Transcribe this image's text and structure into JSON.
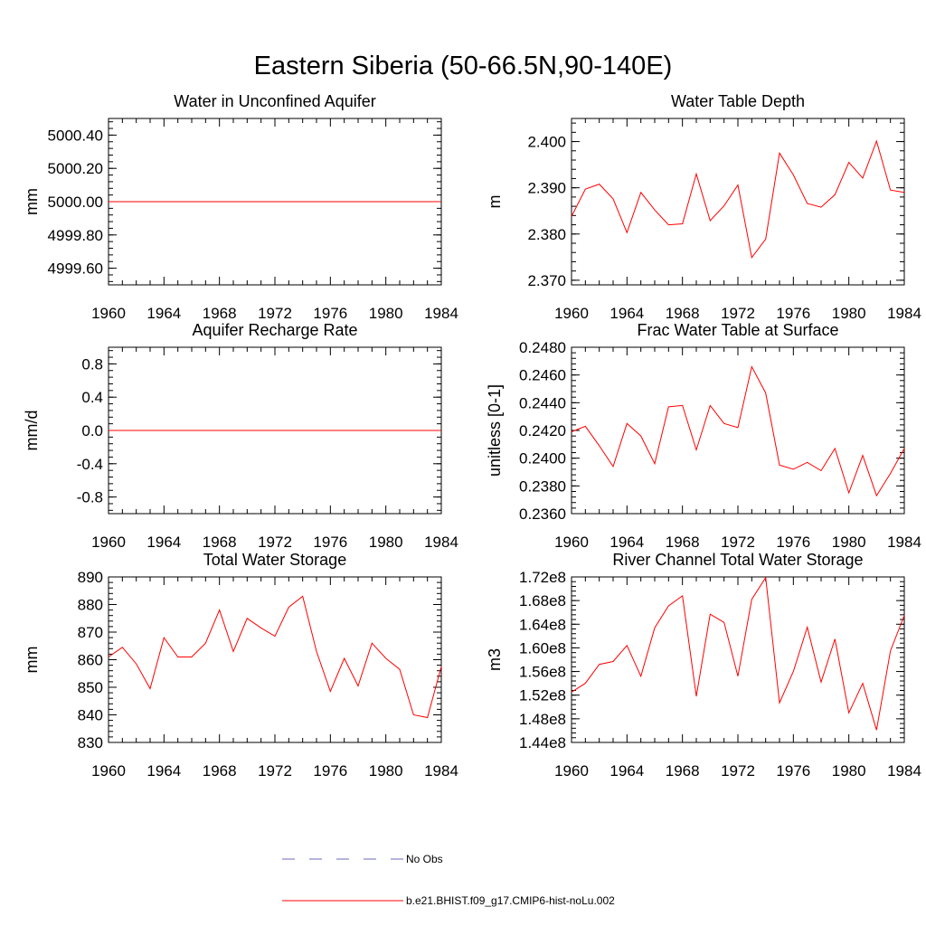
{
  "figure": {
    "title": "Eastern Siberia (50-66.5N,90-140E)",
    "line_color": "#ff0000",
    "obs_color": "#6a6ab8"
  },
  "legend": {
    "entries": [
      {
        "label": "No Obs",
        "style": "dashed",
        "color": "#6a6ab8"
      },
      {
        "label": "b.e21.BHIST.f09_g17.CMIP6-hist-noLu.002",
        "style": "solid",
        "color": "#ff0000"
      }
    ]
  },
  "chart_data": [
    {
      "type": "line",
      "title": "Water in Unconfined Aquifer",
      "ylabel": "mm",
      "x": [
        1960,
        1984
      ],
      "values": [
        5000.0,
        5000.0
      ],
      "xlim": [
        1960,
        1984
      ],
      "xticks": [
        "1960",
        "1964",
        "1968",
        "1972",
        "1976",
        "1980",
        "1984"
      ],
      "ylim": [
        4999.5,
        5000.5
      ],
      "yticks": [
        {
          "v": 4999.6,
          "label": "4999.60"
        },
        {
          "v": 4999.8,
          "label": "4999.80"
        },
        {
          "v": 5000.0,
          "label": "5000.00"
        },
        {
          "v": 5000.2,
          "label": "5000.20"
        },
        {
          "v": 5000.4,
          "label": "5000.40"
        }
      ],
      "grid": false
    },
    {
      "type": "line",
      "title": "Water Table Depth",
      "ylabel": "m",
      "x": [
        1960,
        1961,
        1962,
        1963,
        1964,
        1965,
        1966,
        1967,
        1968,
        1969,
        1970,
        1971,
        1972,
        1973,
        1974,
        1975,
        1976,
        1977,
        1978,
        1979,
        1980,
        1981,
        1982,
        1983,
        1984
      ],
      "values": [
        2.3838,
        2.3897,
        2.3908,
        2.3876,
        2.3803,
        2.389,
        2.3852,
        2.382,
        2.3822,
        2.393,
        2.3829,
        2.3861,
        2.3906,
        2.3749,
        2.3789,
        2.3975,
        2.3928,
        2.3866,
        2.3858,
        2.3885,
        2.3955,
        2.3921,
        2.4001,
        2.3895,
        2.389
      ],
      "xlim": [
        1960,
        1984
      ],
      "xticks": [
        "1960",
        "1964",
        "1968",
        "1972",
        "1976",
        "1980",
        "1984"
      ],
      "ylim": [
        2.369,
        2.405
      ],
      "yticks": [
        {
          "v": 2.37,
          "label": "2.370"
        },
        {
          "v": 2.38,
          "label": "2.380"
        },
        {
          "v": 2.39,
          "label": "2.390"
        },
        {
          "v": 2.4,
          "label": "2.400"
        }
      ],
      "grid": false
    },
    {
      "type": "line",
      "title": "Aquifer Recharge Rate",
      "ylabel": "mm/d",
      "x": [
        1960,
        1984
      ],
      "values": [
        0.0,
        0.0
      ],
      "xlim": [
        1960,
        1984
      ],
      "xticks": [
        "1960",
        "1964",
        "1968",
        "1972",
        "1976",
        "1980",
        "1984"
      ],
      "ylim": [
        -1.0,
        1.0
      ],
      "yticks": [
        {
          "v": -0.8,
          "label": "-0.8"
        },
        {
          "v": -0.4,
          "label": "-0.4"
        },
        {
          "v": 0.0,
          "label": "0.0"
        },
        {
          "v": 0.4,
          "label": "0.4"
        },
        {
          "v": 0.8,
          "label": "0.8"
        }
      ],
      "grid": false
    },
    {
      "type": "line",
      "title": "Frac Water Table at Surface",
      "ylabel": "unitless [0-1]",
      "x": [
        1960,
        1961,
        1962,
        1963,
        1964,
        1965,
        1966,
        1967,
        1968,
        1969,
        1970,
        1971,
        1972,
        1973,
        1974,
        1975,
        1976,
        1977,
        1978,
        1979,
        1980,
        1981,
        1982,
        1983,
        1984
      ],
      "values": [
        0.2419,
        0.2423,
        0.2409,
        0.2394,
        0.2425,
        0.2416,
        0.2396,
        0.2437,
        0.2438,
        0.2406,
        0.2438,
        0.2425,
        0.2422,
        0.2466,
        0.2447,
        0.2395,
        0.2392,
        0.2397,
        0.2391,
        0.2407,
        0.2375,
        0.2402,
        0.2373,
        0.2389,
        0.2407
      ],
      "xlim": [
        1960,
        1984
      ],
      "xticks": [
        "1960",
        "1964",
        "1968",
        "1972",
        "1976",
        "1980",
        "1984"
      ],
      "ylim": [
        0.236,
        0.248
      ],
      "yticks": [
        {
          "v": 0.236,
          "label": "0.2360"
        },
        {
          "v": 0.238,
          "label": "0.2380"
        },
        {
          "v": 0.24,
          "label": "0.2400"
        },
        {
          "v": 0.242,
          "label": "0.2420"
        },
        {
          "v": 0.244,
          "label": "0.2440"
        },
        {
          "v": 0.246,
          "label": "0.2460"
        },
        {
          "v": 0.248,
          "label": "0.2480"
        }
      ],
      "grid": false
    },
    {
      "type": "line",
      "title": "Total Water Storage",
      "ylabel": "mm",
      "x": [
        1960,
        1961,
        1962,
        1963,
        1964,
        1965,
        1966,
        1967,
        1968,
        1969,
        1970,
        1971,
        1972,
        1973,
        1974,
        1975,
        1976,
        1977,
        1978,
        1979,
        1980,
        1981,
        1982,
        1983,
        1984
      ],
      "values": [
        861.0,
        864.5,
        858.5,
        849.5,
        868.0,
        861.0,
        861.0,
        866.0,
        878.0,
        863.0,
        875.0,
        871.5,
        868.5,
        879.0,
        883.0,
        863.0,
        848.5,
        860.5,
        850.5,
        866.0,
        860.5,
        856.5,
        840.0,
        839.0,
        857.5
      ],
      "xlim": [
        1960,
        1984
      ],
      "xticks": [
        "1960",
        "1964",
        "1968",
        "1972",
        "1976",
        "1980",
        "1984"
      ],
      "ylim": [
        830,
        890
      ],
      "yticks": [
        {
          "v": 830,
          "label": "830"
        },
        {
          "v": 840,
          "label": "840"
        },
        {
          "v": 850,
          "label": "850"
        },
        {
          "v": 860,
          "label": "860"
        },
        {
          "v": 870,
          "label": "870"
        },
        {
          "v": 880,
          "label": "880"
        },
        {
          "v": 890,
          "label": "890"
        }
      ],
      "grid": false
    },
    {
      "type": "line",
      "title": "River Channel Total Water Storage",
      "ylabel": "m3",
      "x": [
        1960,
        1961,
        1962,
        1963,
        1964,
        1965,
        1966,
        1967,
        1968,
        1969,
        1970,
        1971,
        1972,
        1973,
        1974,
        1975,
        1976,
        1977,
        1978,
        1979,
        1980,
        1981,
        1982,
        1983,
        1984
      ],
      "values": [
        152500000.0,
        154000000.0,
        157200000.0,
        157700000.0,
        160400000.0,
        155200000.0,
        163400000.0,
        167100000.0,
        168800000.0,
        151800000.0,
        165700000.0,
        164300000.0,
        155200000.0,
        168200000.0,
        171900000.0,
        150700000.0,
        156000000.0,
        163500000.0,
        154200000.0,
        161500000.0,
        149000000.0,
        154000000.0,
        146100000.0,
        159500000.0,
        165500000.0
      ],
      "xlim": [
        1960,
        1984
      ],
      "xticks": [
        "1960",
        "1964",
        "1968",
        "1972",
        "1976",
        "1980",
        "1984"
      ],
      "ylim": [
        144000000.0,
        172000000.0
      ],
      "yticks": [
        {
          "v": 144000000.0,
          "label": "1.44e8"
        },
        {
          "v": 148000000.0,
          "label": "1.48e8"
        },
        {
          "v": 152000000.0,
          "label": "1.52e8"
        },
        {
          "v": 156000000.0,
          "label": "1.56e8"
        },
        {
          "v": 160000000.0,
          "label": "1.60e8"
        },
        {
          "v": 164000000.0,
          "label": "1.64e8"
        },
        {
          "v": 168000000.0,
          "label": "1.68e8"
        },
        {
          "v": 172000000.0,
          "label": "1.72e8"
        }
      ],
      "grid": false
    }
  ]
}
